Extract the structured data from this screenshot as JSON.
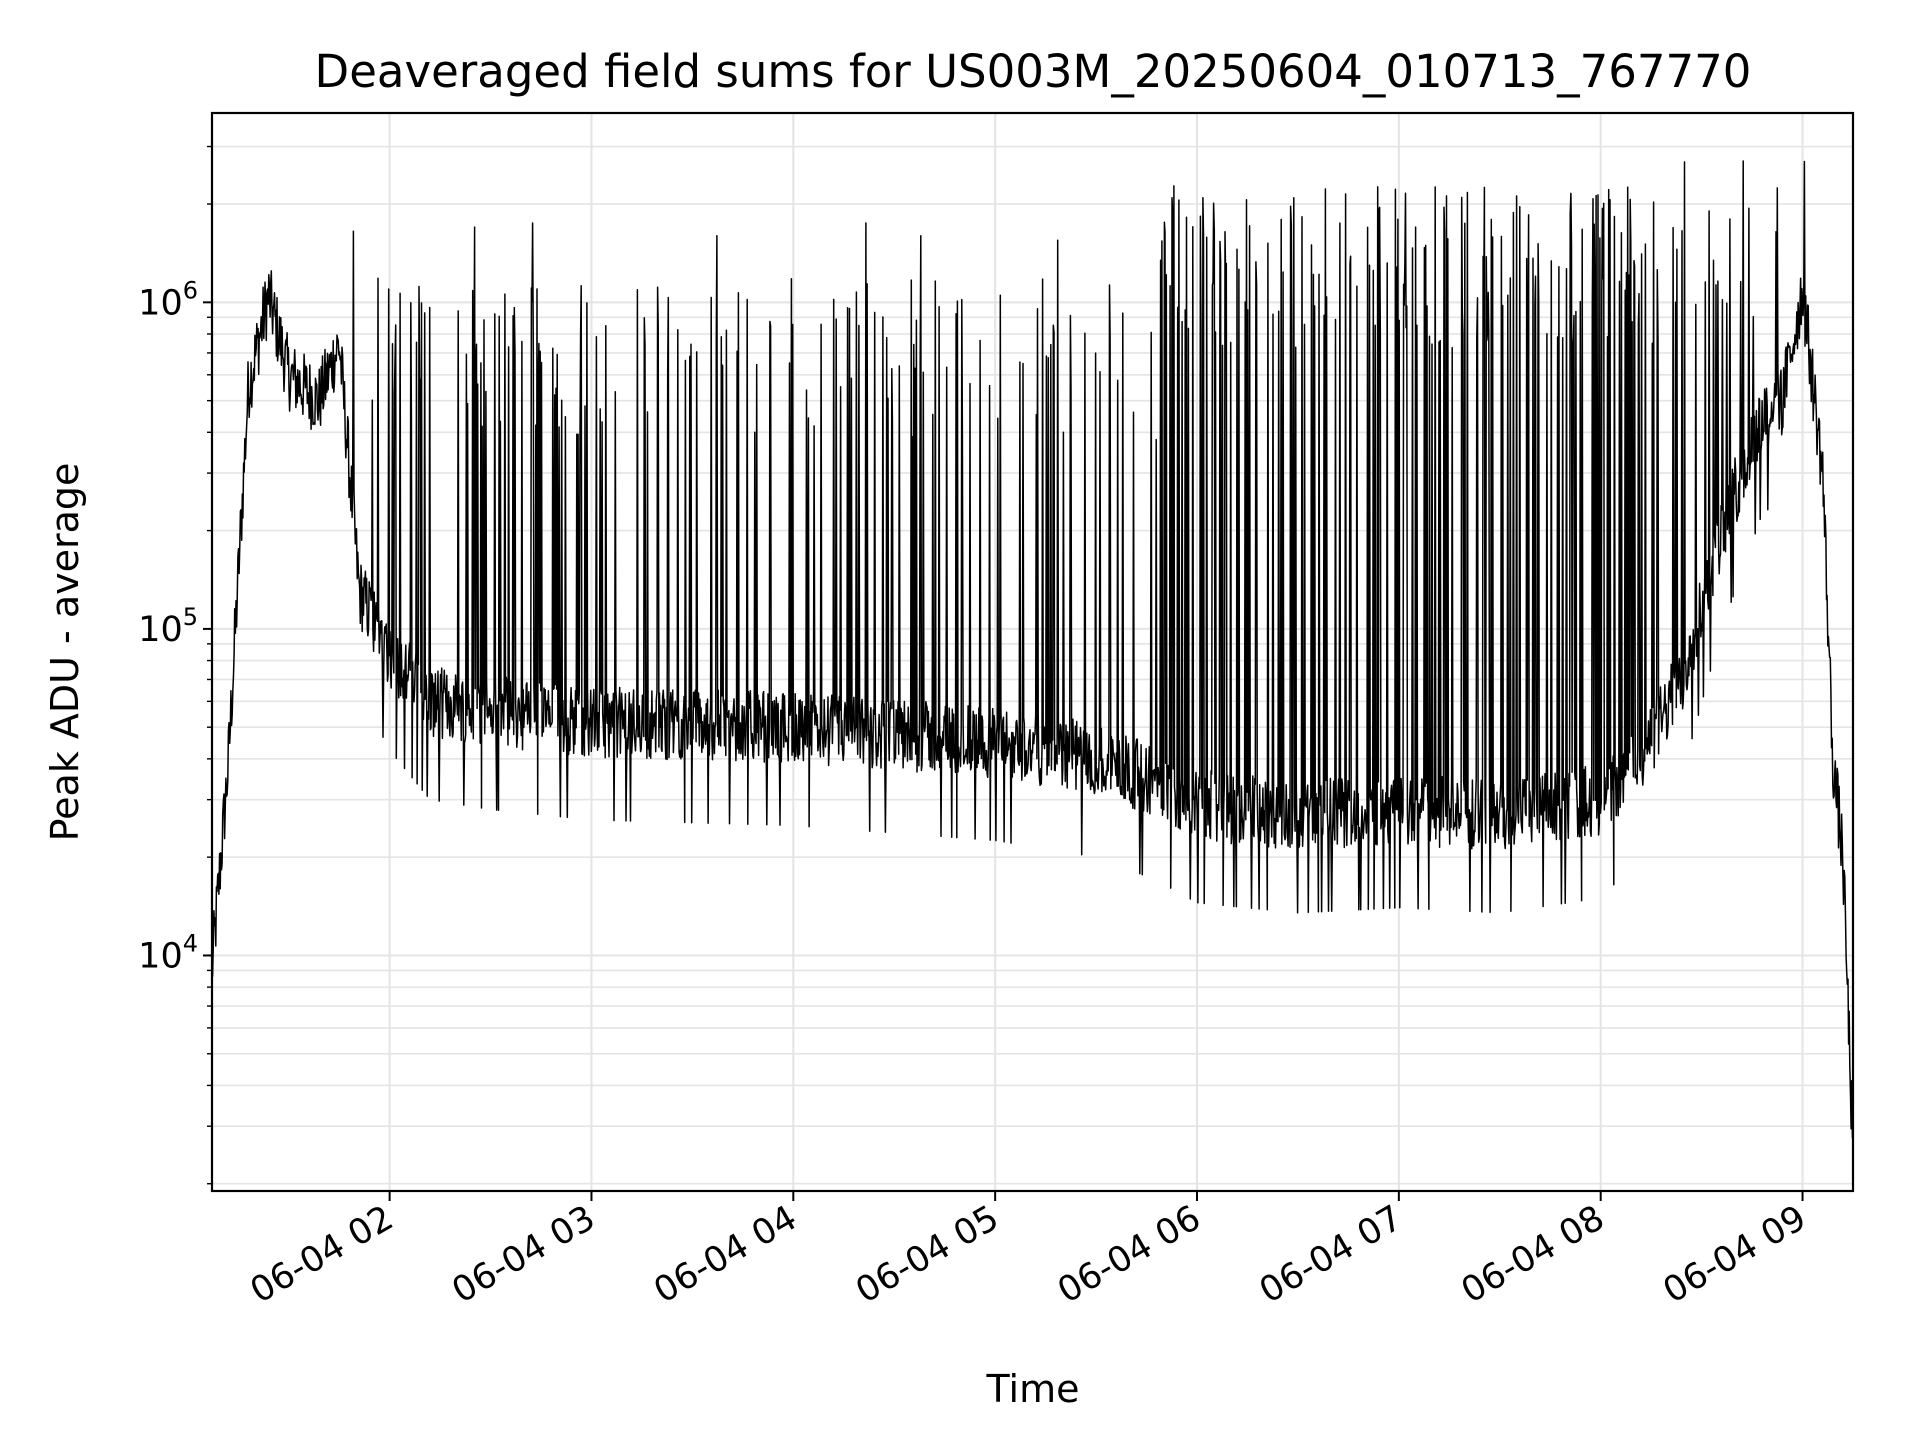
{
  "chart_data": {
    "type": "line",
    "title": "Deaveraged field sums for US003M_20250604_010713_767770",
    "xlabel": "Time",
    "ylabel": "Peak ADU - average",
    "yscale": "log",
    "ylim": [
      1900,
      3800000
    ],
    "xlim_hours": [
      1.12,
      9.25
    ],
    "grid": true,
    "line_color": "#000000",
    "grid_color": "#e4e4e4",
    "x_ticks": [
      {
        "label": "06-04 02",
        "hour": 2
      },
      {
        "label": "06-04 03",
        "hour": 3
      },
      {
        "label": "06-04 04",
        "hour": 4
      },
      {
        "label": "06-04 05",
        "hour": 5
      },
      {
        "label": "06-04 06",
        "hour": 6
      },
      {
        "label": "06-04 07",
        "hour": 7
      },
      {
        "label": "06-04 08",
        "hour": 8
      },
      {
        "label": "06-04 09",
        "hour": 9
      }
    ],
    "y_ticks": [
      {
        "base": "10",
        "exp": "4",
        "value": 10000
      },
      {
        "base": "10",
        "exp": "5",
        "value": 100000
      },
      {
        "base": "10",
        "exp": "6",
        "value": 1000000
      }
    ],
    "series": [
      {
        "baseline_envelope": [
          {
            "hour": 1.12,
            "y": 9000
          },
          {
            "hour": 1.2,
            "y": 38000
          },
          {
            "hour": 1.3,
            "y": 550000
          },
          {
            "hour": 1.4,
            "y": 1050000
          },
          {
            "hour": 1.5,
            "y": 600000
          },
          {
            "hour": 1.65,
            "y": 500000
          },
          {
            "hour": 1.75,
            "y": 750000
          },
          {
            "hour": 1.85,
            "y": 130000
          },
          {
            "hour": 2.0,
            "y": 85000
          },
          {
            "hour": 2.2,
            "y": 60000
          },
          {
            "hour": 2.5,
            "y": 56000
          },
          {
            "hour": 3.0,
            "y": 52000
          },
          {
            "hour": 4.0,
            "y": 50000
          },
          {
            "hour": 5.0,
            "y": 45000
          },
          {
            "hour": 5.5,
            "y": 40000
          },
          {
            "hour": 5.8,
            "y": 34000
          },
          {
            "hour": 6.0,
            "y": 29000
          },
          {
            "hour": 6.5,
            "y": 27000
          },
          {
            "hour": 7.0,
            "y": 28000
          },
          {
            "hour": 7.5,
            "y": 27000
          },
          {
            "hour": 8.0,
            "y": 30000
          },
          {
            "hour": 8.2,
            "y": 40000
          },
          {
            "hour": 8.4,
            "y": 70000
          },
          {
            "hour": 8.6,
            "y": 200000
          },
          {
            "hour": 8.8,
            "y": 450000
          },
          {
            "hour": 8.9,
            "y": 500000
          },
          {
            "hour": 9.0,
            "y": 1100000
          },
          {
            "hour": 9.1,
            "y": 300000
          },
          {
            "hour": 9.15,
            "y": 40000
          },
          {
            "hour": 9.2,
            "y": 20000
          },
          {
            "hour": 9.25,
            "y": 2500
          }
        ],
        "spikes": [
          {
            "hour": 1.82,
            "y": 1650000
          },
          {
            "hour": 2.42,
            "y": 1700000
          },
          {
            "hour": 2.71,
            "y": 1750000
          },
          {
            "hour": 3.62,
            "y": 1600000
          },
          {
            "hour": 4.36,
            "y": 1750000
          },
          {
            "hour": 4.63,
            "y": 1600000
          },
          {
            "hour": 5.31,
            "y": 1550000
          },
          {
            "hour": 8.64,
            "y": 1800000
          },
          {
            "hour": 9.01,
            "y": 2700000
          }
        ]
      }
    ]
  }
}
